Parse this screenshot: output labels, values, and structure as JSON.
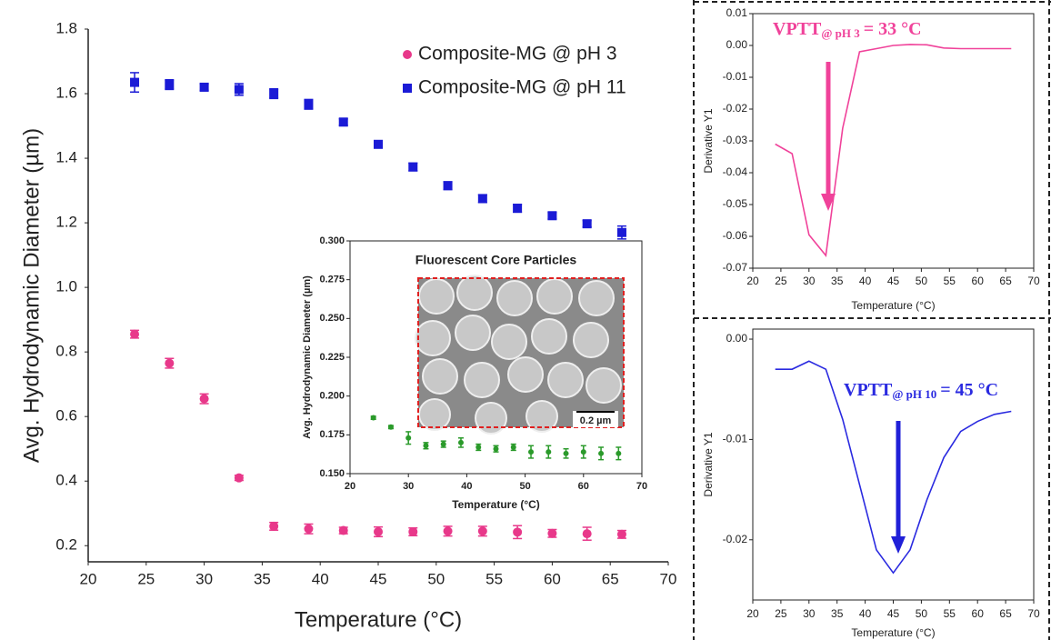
{
  "chart_data": [
    {
      "type": "scatter",
      "xlabel": "Temperature (°C)",
      "ylabel": "Avg. Hydrodynamic Diameter (µm)",
      "x": [
        24,
        27,
        30,
        33,
        36,
        39,
        42,
        45,
        48,
        51,
        54,
        57,
        60,
        63,
        66
      ],
      "series": [
        {
          "name": "Composite-MG @ pH 3",
          "color": "#e8388a",
          "marker": "circle",
          "values": [
            0.855,
            0.765,
            0.655,
            0.41,
            0.26,
            0.252,
            0.247,
            0.243,
            0.243,
            0.245,
            0.245,
            0.242,
            0.238,
            0.237,
            0.235
          ],
          "errors": [
            0.012,
            0.015,
            0.015,
            0.008,
            0.012,
            0.015,
            0.01,
            0.015,
            0.012,
            0.015,
            0.015,
            0.02,
            0.012,
            0.02,
            0.012
          ]
        },
        {
          "name": "Composite-MG @ pH 11",
          "color": "#1a1ad6",
          "marker": "square",
          "values": [
            1.635,
            1.628,
            1.62,
            1.613,
            1.6,
            1.567,
            1.512,
            1.443,
            1.373,
            1.315,
            1.275,
            1.245,
            1.222,
            1.197,
            1.17
          ],
          "errors": [
            0.03,
            0.015,
            0.01,
            0.018,
            0.015,
            0.015,
            0.01,
            0.01,
            0.012,
            0.012,
            0.012,
            0.012,
            0.01,
            0.01,
            0.02
          ]
        }
      ],
      "xlim": [
        20,
        70
      ],
      "xticks": [
        20,
        25,
        30,
        35,
        40,
        45,
        50,
        55,
        60,
        65,
        70
      ],
      "ylim": [
        0.15,
        1.8
      ],
      "yticks": [
        0.2,
        0.4,
        0.6,
        0.8,
        {
          "value": 1,
          "label": "1.0"
        },
        1.2,
        1.4,
        1.6,
        1.8
      ],
      "legend": "upper right"
    },
    {
      "type": "scatter",
      "title": "Fluorescent Core Particles",
      "scale_bar_label": "0.2 µm",
      "xlabel": "Temperature (°C)",
      "ylabel": "Avg. Hydrodynamic Diameter (µm)",
      "x": [
        24,
        27,
        30,
        33,
        36,
        39,
        42,
        45,
        48,
        51,
        54,
        57,
        60,
        63,
        66
      ],
      "series": [
        {
          "color": "#2a9a2a",
          "marker": "circle",
          "values": [
            0.186,
            0.18,
            0.173,
            0.168,
            0.169,
            0.17,
            0.167,
            0.166,
            0.167,
            0.164,
            0.164,
            0.163,
            0.164,
            0.163,
            0.163
          ],
          "errors": [
            0.001,
            0.001,
            0.004,
            0.002,
            0.002,
            0.003,
            0.002,
            0.002,
            0.002,
            0.004,
            0.004,
            0.003,
            0.004,
            0.004,
            0.004
          ]
        }
      ],
      "xlim": [
        20,
        70
      ],
      "xticks": [
        20,
        30,
        40,
        50,
        60,
        70
      ],
      "ylim": [
        0.15,
        0.3
      ],
      "yticks": [
        {
          "value": 0.15,
          "label": "0.150"
        },
        0.175,
        {
          "value": 0.2,
          "label": "0.200"
        },
        0.225,
        {
          "value": 0.25,
          "label": "0.250"
        },
        0.275,
        {
          "value": 0.3,
          "label": "0.300"
        }
      ]
    },
    {
      "type": "line",
      "xlabel": "Temperature (°C)",
      "ylabel": "Derivative Y1",
      "annotation": {
        "text": "VPTT",
        "subscript": "@ pH 3",
        "suffix": "= 33 °C"
      },
      "x": [
        24,
        27,
        30,
        33,
        36,
        39,
        42,
        45,
        48,
        51,
        54,
        57,
        60,
        63,
        66
      ],
      "series": [
        {
          "color": "#f0429a",
          "values": [
            -0.031,
            -0.034,
            -0.0595,
            -0.066,
            -0.026,
            -0.002,
            -0.001,
            0,
            0.0003,
            0.0002,
            -0.0008,
            -0.001,
            -0.001,
            -0.001,
            -0.001
          ]
        }
      ],
      "xlim": [
        20,
        70
      ],
      "xticks": [
        20,
        25,
        30,
        35,
        40,
        45,
        50,
        55,
        60,
        65,
        70
      ],
      "ylim": [
        -0.07,
        0.01
      ],
      "yticks": [
        -0.07,
        -0.06,
        -0.05,
        -0.04,
        -0.03,
        -0.02,
        -0.01,
        {
          "value": 0,
          "label": "0.00"
        },
        0.01
      ]
    },
    {
      "type": "line",
      "xlabel": "Temperature (°C)",
      "ylabel": "Derivative Y1",
      "annotation": {
        "text": "VPTT",
        "subscript": "@ pH 10",
        "suffix": "= 45 °C"
      },
      "x": [
        24,
        27,
        30,
        33,
        36,
        39,
        42,
        45,
        48,
        51,
        54,
        57,
        60,
        63,
        66
      ],
      "series": [
        {
          "color": "#2a2ae0",
          "values": [
            -0.003,
            -0.003,
            -0.0022,
            -0.003,
            -0.008,
            -0.0145,
            -0.021,
            -0.0233,
            -0.021,
            -0.016,
            -0.0118,
            -0.0092,
            -0.0082,
            -0.0075,
            -0.0072
          ]
        }
      ],
      "xlim": [
        20,
        70
      ],
      "xticks": [
        20,
        25,
        30,
        35,
        40,
        45,
        50,
        55,
        60,
        65,
        70
      ],
      "ylim": [
        -0.026,
        0.001
      ],
      "yticks": [
        -0.02,
        -0.01,
        {
          "value": 0,
          "label": "0.00"
        }
      ]
    }
  ]
}
